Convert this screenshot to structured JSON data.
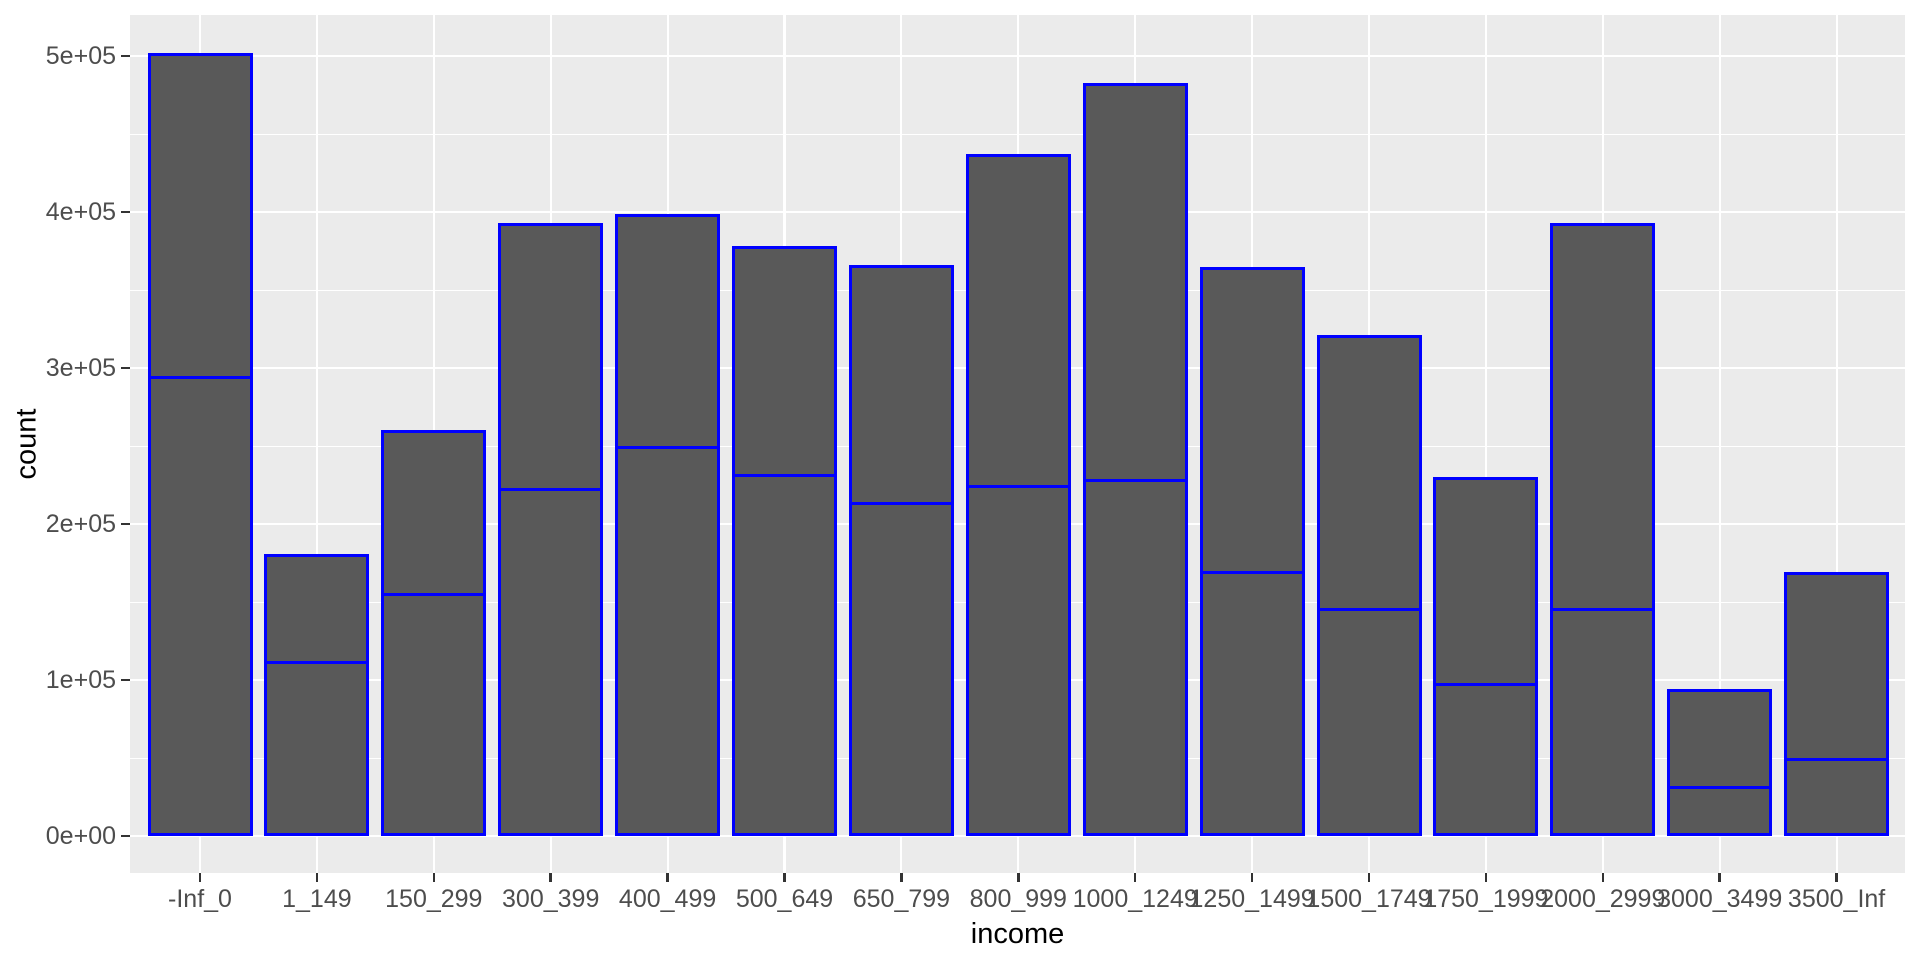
{
  "chart_data": {
    "type": "bar",
    "stacked": true,
    "title": "",
    "xlabel": "income",
    "ylabel": "count",
    "categories": [
      "-Inf_0",
      "1_149",
      "150_299",
      "300_399",
      "400_499",
      "500_649",
      "650_799",
      "800_999",
      "1000_1249",
      "1250_1499",
      "1500_1749",
      "1750_1999",
      "2000_2999",
      "3000_3499",
      "3500_Inf"
    ],
    "series": [
      {
        "name": "bottom-segment",
        "values": [
          294000,
          111000,
          155000,
          222000,
          249000,
          231000,
          213000,
          224000,
          228000,
          169000,
          145000,
          97000,
          145000,
          31000,
          49000
        ]
      },
      {
        "name": "top-segment",
        "values": [
          208000,
          70000,
          105000,
          171000,
          150000,
          147000,
          153000,
          213000,
          255000,
          196000,
          176000,
          133000,
          248000,
          63000,
          120000
        ]
      }
    ],
    "totals": [
      502000,
      181000,
      260000,
      393000,
      399000,
      378000,
      366000,
      437000,
      483000,
      365000,
      321000,
      230000,
      393000,
      94000,
      169000
    ],
    "y_ticks": [
      "0e+00",
      "1e+05",
      "2e+05",
      "3e+05",
      "4e+05",
      "5e+05"
    ],
    "y_tick_values": [
      0,
      100000,
      200000,
      300000,
      400000,
      500000
    ],
    "y_minor_values": [
      50000,
      150000,
      250000,
      350000,
      450000
    ],
    "ylim": [
      -25000,
      535000
    ],
    "grid": "white major+minor horizontal lines, white vertical line per category, drawn under bars",
    "legend": "none",
    "colors": {
      "bar_fill": "#595959",
      "bar_stroke": "#0000FF",
      "panel_bg": "#EBEBEB",
      "grid": "#FFFFFF",
      "tick_label": "#4D4D4D",
      "axis_title": "#000000",
      "tick_mark": "#333333",
      "outer_bg": "#FFFFFF"
    }
  }
}
